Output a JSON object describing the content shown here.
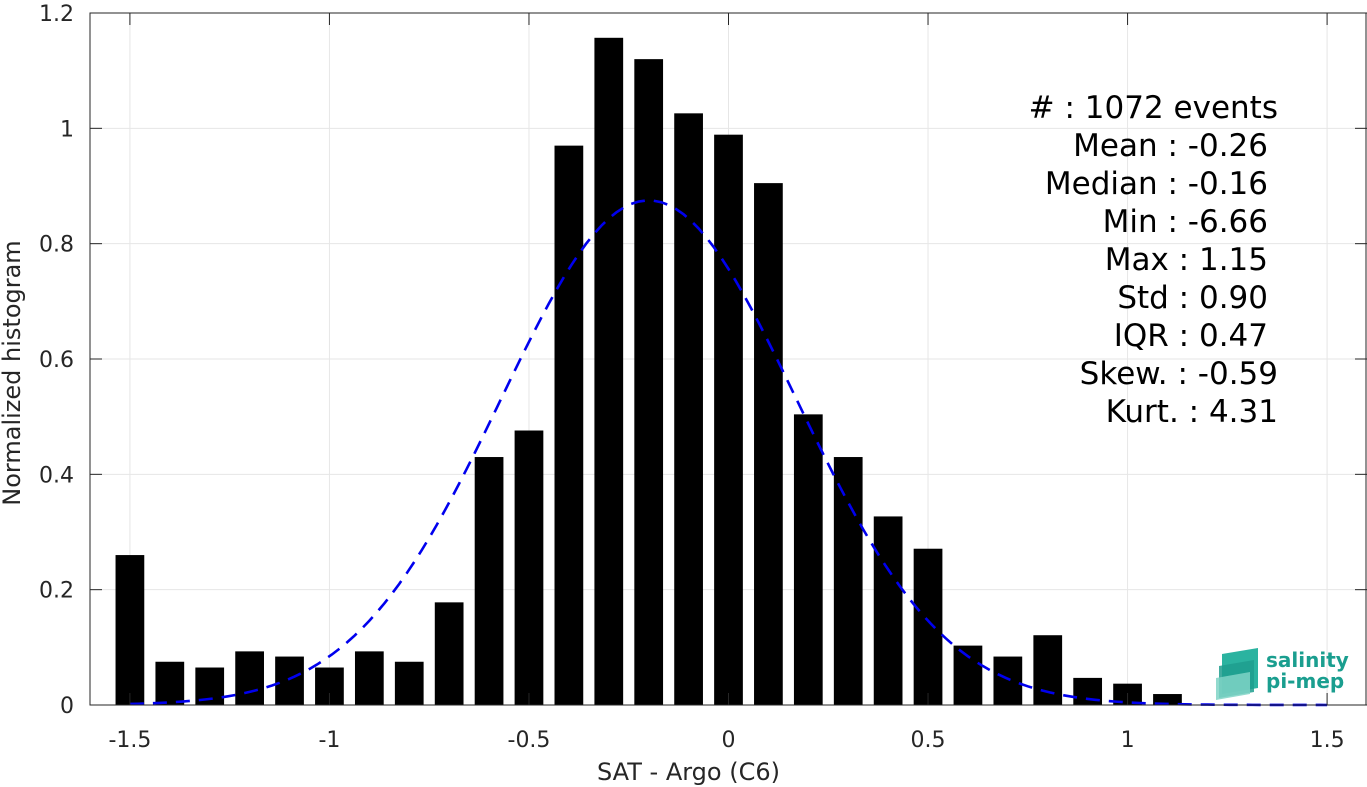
{
  "chart_data": {
    "type": "bar",
    "xlabel": "SAT - Argo (C6)",
    "ylabel": "Normalized histogram",
    "xlim": [
      -1.6,
      1.6
    ],
    "ylim": [
      0,
      1.2
    ],
    "grid": true,
    "x_tick_labels": [
      "-1.5",
      "-1",
      "-0.5",
      "0",
      "0.5",
      "1",
      "1.5"
    ],
    "y_tick_labels": [
      "0",
      "0.2",
      "0.4",
      "0.6",
      "0.8",
      "1",
      "1.2"
    ],
    "bin_width": 0.1,
    "bin_centers": [
      -1.5,
      -1.4,
      -1.3,
      -1.2,
      -1.1,
      -1.0,
      -0.9,
      -0.8,
      -0.7,
      -0.6,
      -0.5,
      -0.4,
      -0.3,
      -0.2,
      -0.1,
      0.0,
      0.1,
      0.2,
      0.3,
      0.4,
      0.5,
      0.6,
      0.7,
      0.8,
      0.9,
      1.0,
      1.1
    ],
    "values": [
      0.26,
      0.075,
      0.065,
      0.093,
      0.084,
      0.065,
      0.093,
      0.075,
      0.178,
      0.43,
      0.476,
      0.97,
      1.157,
      1.12,
      1.026,
      0.989,
      0.905,
      0.504,
      0.43,
      0.327,
      0.271,
      0.103,
      0.084,
      0.121,
      0.047,
      0.037,
      0.019
    ],
    "bar_color": "#000000",
    "fit": {
      "kind": "normal",
      "color": "#0000ee",
      "style": "dashed",
      "mean": -0.2,
      "amplitude": 0.875,
      "sigma": 0.37,
      "x_range": [
        -1.5,
        1.5
      ]
    },
    "stats": [
      {
        "label": "#  : 1072 events"
      },
      {
        "label": "Mean : -0.26"
      },
      {
        "label": "Median : -0.16"
      },
      {
        "label": "Min : -6.66"
      },
      {
        "label": "Max : 1.15"
      },
      {
        "label": "Std : 0.90"
      },
      {
        "label": "IQR : 0.47"
      },
      {
        "label": "Skew. : -0.59"
      },
      {
        "label": "Kurt. : 4.31"
      }
    ]
  },
  "logo": {
    "line1": "salinity",
    "line2": "pi-mep",
    "icon": "waves-icon",
    "color": "#1a9e8f"
  }
}
